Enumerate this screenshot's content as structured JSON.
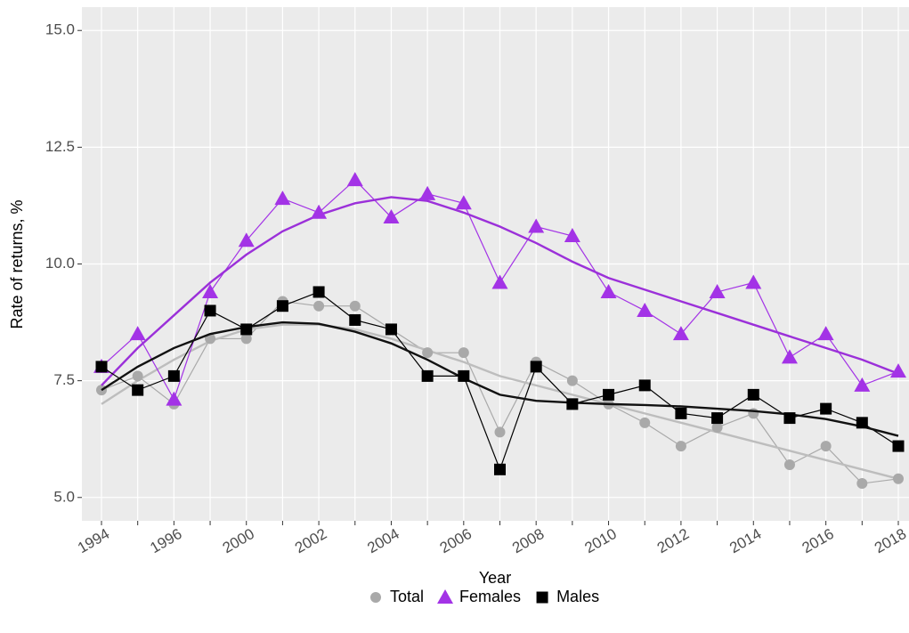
{
  "chart_data": {
    "type": "line",
    "x_label": "Year",
    "y_label": "Rate of returns, %",
    "categories": [
      "1994",
      null,
      "1996",
      null,
      "2000",
      null,
      "2002",
      null,
      "2004",
      null,
      "2006",
      null,
      "2008",
      null,
      "2010",
      null,
      "2012",
      null,
      "2014",
      null,
      "2016",
      null,
      "2018"
    ],
    "ylim": [
      4.5,
      15.5
    ],
    "yticks": [
      {
        "value": 5.0,
        "label": "5.0"
      },
      7.5,
      {
        "value": 10.0,
        "label": "10.0"
      },
      12.5,
      {
        "value": 15.0,
        "label": "15.0"
      }
    ],
    "grid": true,
    "legend": "bottom",
    "series": [
      {
        "name": "Total",
        "color": "#a9a9a9",
        "trend_color": "#bdbdbd",
        "marker": "circle",
        "values": [
          7.3,
          7.6,
          7.0,
          8.4,
          8.4,
          9.2,
          9.1,
          9.1,
          8.6,
          8.1,
          8.1,
          6.4,
          7.9,
          7.5,
          7.0,
          6.6,
          6.1,
          6.5,
          6.8,
          5.7,
          6.1,
          5.3,
          5.4
        ],
        "trend": [
          7.0,
          7.5,
          7.95,
          8.35,
          8.6,
          8.7,
          8.7,
          8.6,
          8.4,
          8.15,
          7.9,
          7.6,
          7.4,
          7.2,
          7.0,
          6.8,
          6.6,
          6.4,
          6.2,
          6.0,
          5.8,
          5.6,
          5.4
        ]
      },
      {
        "name": "Females",
        "color": "#a333e6",
        "trend_color": "#9b30d9",
        "marker": "triangle",
        "values": [
          7.8,
          8.5,
          7.1,
          9.4,
          10.5,
          11.4,
          11.1,
          11.8,
          11.0,
          11.5,
          11.3,
          9.6,
          10.8,
          10.6,
          9.4,
          9.0,
          8.5,
          9.4,
          9.6,
          8.0,
          8.5,
          7.4,
          7.7
        ],
        "trend": [
          7.4,
          8.2,
          8.9,
          9.6,
          10.2,
          10.7,
          11.05,
          11.3,
          11.43,
          11.35,
          11.1,
          10.8,
          10.45,
          10.05,
          9.7,
          9.45,
          9.2,
          8.95,
          8.7,
          8.45,
          8.2,
          7.95,
          7.65
        ]
      },
      {
        "name": "Males",
        "color": "#000000",
        "trend_color": "#111111",
        "marker": "square",
        "values": [
          7.8,
          7.3,
          7.6,
          9.0,
          8.6,
          9.1,
          9.4,
          8.8,
          8.6,
          7.6,
          7.6,
          5.6,
          7.8,
          7.0,
          7.2,
          7.4,
          6.8,
          6.7,
          7.2,
          6.7,
          6.9,
          6.6,
          6.1
        ],
        "trend": [
          7.3,
          7.8,
          8.2,
          8.5,
          8.65,
          8.75,
          8.72,
          8.55,
          8.3,
          7.95,
          7.55,
          7.2,
          7.07,
          7.03,
          7.0,
          6.98,
          6.95,
          6.9,
          6.85,
          6.78,
          6.68,
          6.52,
          6.32
        ]
      }
    ]
  }
}
